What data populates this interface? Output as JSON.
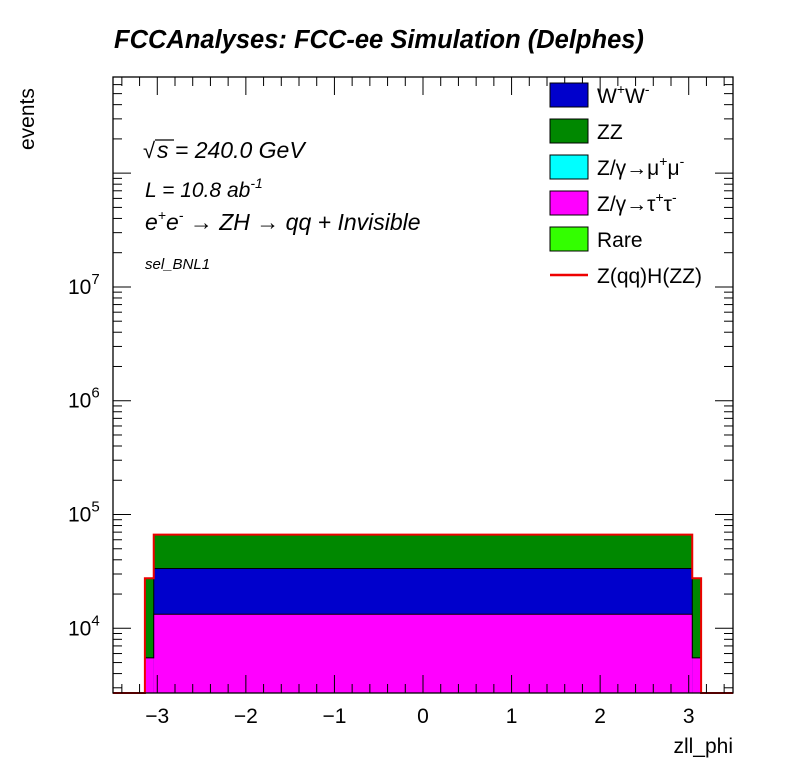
{
  "chart_data": {
    "type": "stacked-histogram",
    "title": "FCCAnalyses: FCC-ee Simulation (Delphes)",
    "xlabel": "zll_phi",
    "ylabel": "events",
    "xlim": [
      -3.5,
      3.5
    ],
    "ylim": [
      2700,
      700000000
    ],
    "yscale": "log",
    "x_ticks": [
      -3,
      -2,
      -1,
      0,
      1,
      2,
      3
    ],
    "x_tick_labels": [
      "−3",
      "−2",
      "−1",
      "0",
      "1",
      "2",
      "3"
    ],
    "y_ticks": [
      {
        "exp": "4",
        "value": 10000
      },
      {
        "exp": "5",
        "value": 100000
      },
      {
        "exp": "6",
        "value": 1000000
      },
      {
        "exp": "7",
        "value": 10000000
      }
    ],
    "annotations": {
      "energy_root": "s",
      "energy": " = 240.0 GeV",
      "lumi_base": "L = 10.8 ab",
      "lumi_exp": "-1",
      "process_e1": "e",
      "process_e1_sup": "+",
      "process_e2": "e",
      "process_e2_sup": "-",
      "process_rest": " → ZH → qq + Invisible",
      "selection": "sel_BNL1"
    },
    "bins": {
      "edges": [
        -3.5,
        -3.14,
        -3.04,
        3.04,
        3.14,
        3.5
      ],
      "pink": [
        0,
        5500,
        13300,
        5500,
        0
      ],
      "blue": [
        0,
        5500,
        33500,
        5500,
        0
      ],
      "green": [
        0,
        27500,
        66500,
        27500,
        0
      ],
      "red": [
        0,
        27500,
        66500,
        27500,
        0
      ]
    },
    "legend": {
      "position": "top-right",
      "entries": [
        {
          "label": "W+W-",
          "base": "W",
          "sup1": "+",
          "mid": "W",
          "sup2": "-",
          "color": "#0000cc",
          "style": "fill"
        },
        {
          "label": "ZZ",
          "base": "ZZ",
          "color": "#008800",
          "style": "fill"
        },
        {
          "label": "Z/γ→μ+μ-",
          "base": "Z/γ→μ",
          "sup1": "+",
          "mid": "μ",
          "sup2": "-",
          "color": "#00ffff",
          "style": "fill"
        },
        {
          "label": "Z/γ→τ+τ-",
          "base": "Z/γ→τ",
          "sup1": "+",
          "mid": "τ",
          "sup2": "-",
          "color": "#ff00ff",
          "style": "fill"
        },
        {
          "label": "Rare",
          "base": "Rare",
          "color": "#33ff00",
          "style": "fill"
        },
        {
          "label": "Z(qq)H(ZZ)",
          "base": "Z(qq)H(ZZ)",
          "color": "#ee0000",
          "style": "line"
        }
      ]
    },
    "colors": {
      "pink": "#ff00ff",
      "blue": "#0000cc",
      "green": "#008800",
      "signal": "#ee0000",
      "frame": "#000000"
    }
  }
}
